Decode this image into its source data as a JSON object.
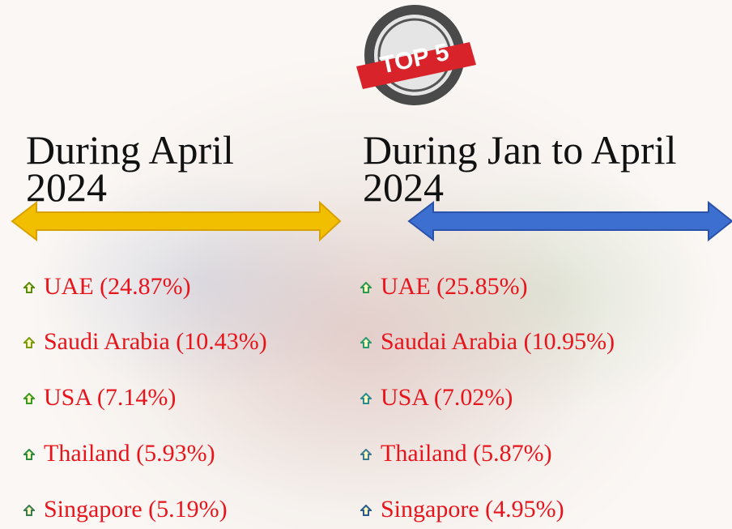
{
  "badge": "TOP 5",
  "columns": [
    {
      "heading": "During April 2024",
      "items": [
        "UAE (24.87%)",
        "Saudi Arabia (10.43%)",
        "USA (7.14%)",
        "Thailand (5.93%)",
        "Singapore (5.19%)"
      ]
    },
    {
      "heading": "During Jan to April 2024",
      "items": [
        "UAE (25.85%)",
        "Saudai Arabia (10.95%)",
        "USA (7.02%)",
        "Thailand (5.87%)",
        "Singapore (4.95%)"
      ]
    }
  ]
}
